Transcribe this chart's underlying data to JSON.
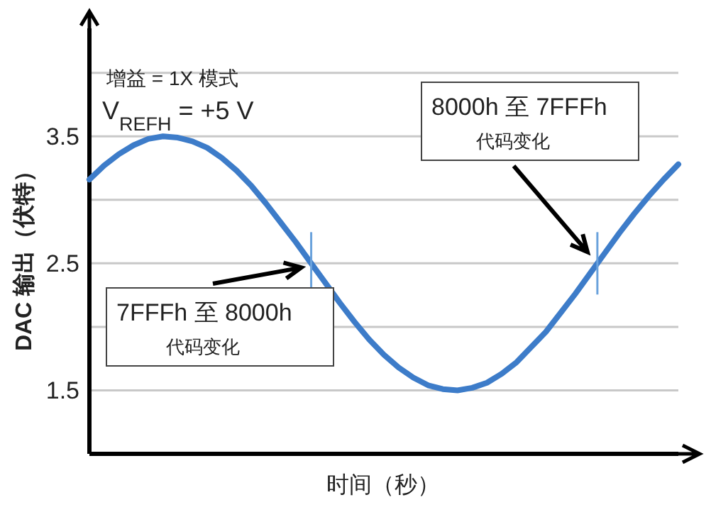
{
  "chart_data": {
    "type": "line",
    "xlabel": "时间（秒）",
    "ylabel": "DAC 输出（伏特）",
    "categories": [
      null,
      null,
      null,
      null,
      null,
      null,
      null,
      null,
      null,
      null,
      null,
      null,
      null,
      null,
      null,
      null,
      null,
      null,
      null,
      null,
      null,
      null,
      null,
      null,
      null,
      null,
      null,
      null,
      null,
      null,
      null,
      null,
      null,
      null,
      null,
      null,
      null,
      null,
      null,
      null,
      null
    ],
    "series": [
      {
        "color": "#3d7cc9",
        "values": [
          3.16,
          3.27,
          3.36,
          3.43,
          3.48,
          3.5,
          3.49,
          3.46,
          3.41,
          3.33,
          3.23,
          3.11,
          2.97,
          2.82,
          2.67,
          2.51,
          2.35,
          2.19,
          2.04,
          1.9,
          1.78,
          1.68,
          1.6,
          1.54,
          1.51,
          1.5,
          1.52,
          1.56,
          1.63,
          1.72,
          1.84,
          1.96,
          2.11,
          2.26,
          2.42,
          2.58,
          2.74,
          2.89,
          3.03,
          3.16,
          3.28
        ]
      }
    ],
    "ylim": [
      1.0,
      4.35
    ],
    "yticks": [
      1.5,
      {
        "value": 2,
        "label": null
      },
      2.5,
      {
        "value": 3,
        "label": null
      },
      3.5,
      {
        "value": 4,
        "label": null
      }
    ],
    "grid": "y",
    "tick_labels": "y",
    "marker": "none",
    "line_style": "solid",
    "annotations": [
      "增益 = 1X 模式",
      "V$_{REFH}$ = +5 V",
      "7FFFh 至 8000h\n代码变化",
      "8000h 至 7FFFh\n代码变化"
    ]
  }
}
